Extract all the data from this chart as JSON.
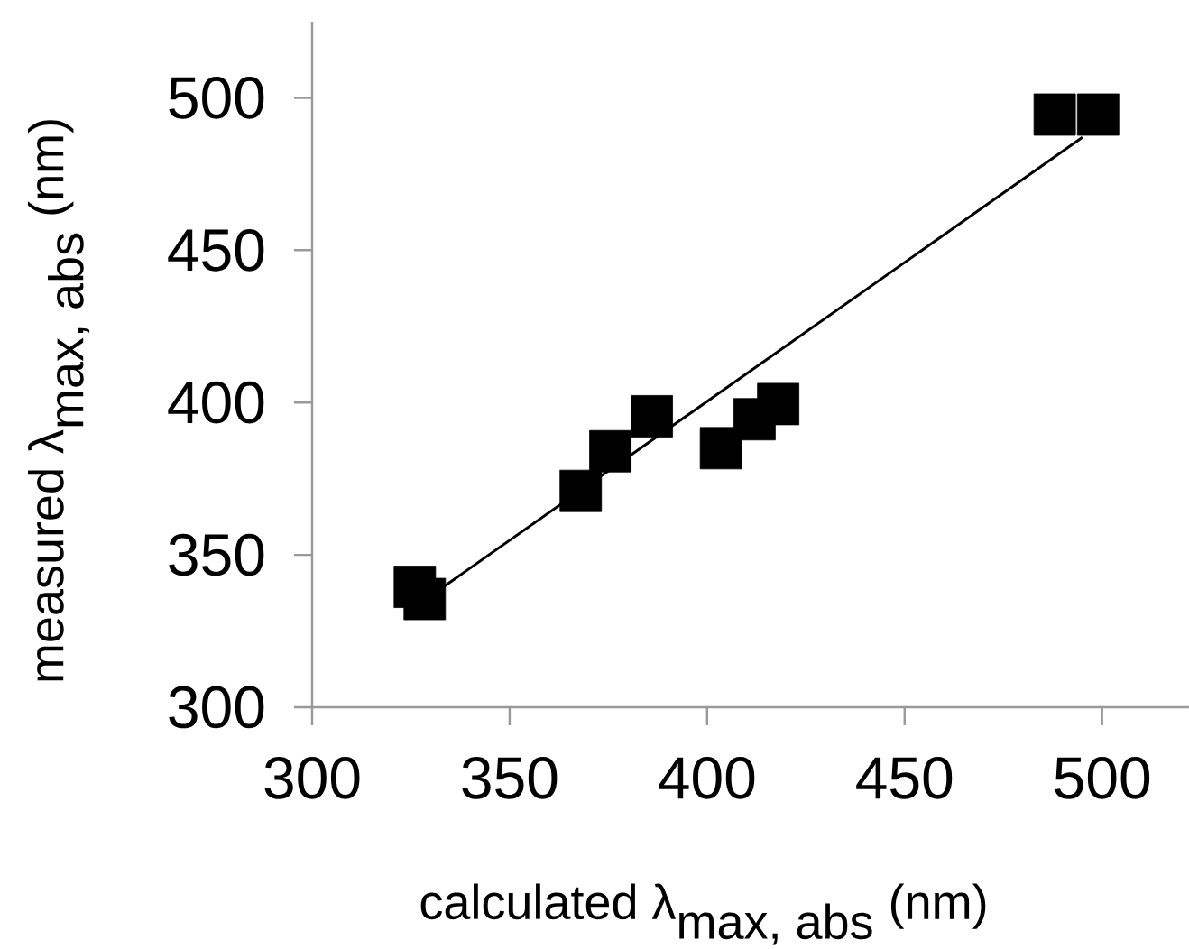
{
  "chart_data": {
    "type": "scatter",
    "xlabel": "\\mbox{calculated λ}_{\\mbox{max, abs}}\\mbox{ (nm)}",
    "ylabel": "\\mbox{measured λ}_{\\mbox{max, abs}}\\mbox{ (nm)}",
    "xlim": [
      300,
      522
    ],
    "ylim": [
      300,
      525
    ],
    "xticks": [
      300,
      350,
      400,
      450,
      500
    ],
    "yticks": [
      300,
      350,
      400,
      450,
      500
    ],
    "series": [
      {
        "color": "#000000",
        "marker": "square",
        "x": [
          326,
          328.5,
          368,
          375.5,
          386,
          403.5,
          412,
          418,
          488,
          499
        ],
        "values": [
          339.5,
          335.5,
          371,
          384,
          395.5,
          385,
          394.5,
          399.5,
          494.5,
          494.5
        ]
      },
      {
        "type": "line",
        "color": "#000000",
        "marker": "none",
        "line_style": "solid",
        "x": [
          330.5,
          495
        ],
        "values": [
          337,
          487
        ]
      }
    ]
  }
}
